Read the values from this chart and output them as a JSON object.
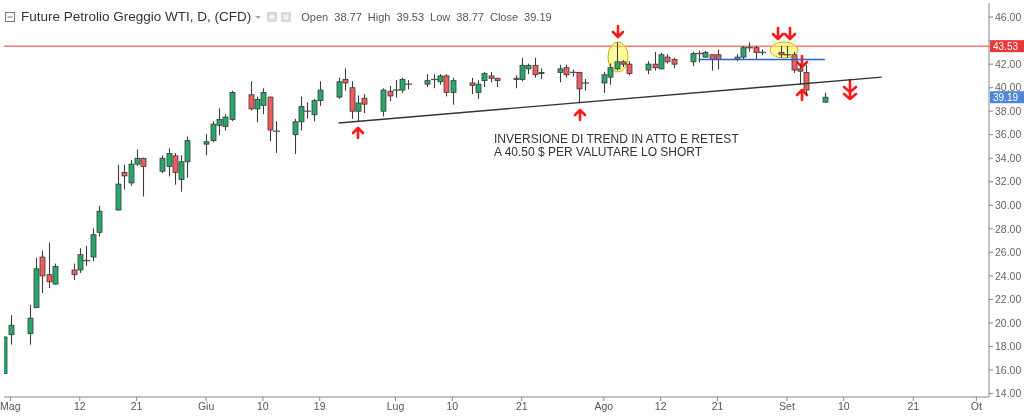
{
  "chart_data": {
    "type": "candlestick",
    "title": "Future Petrolio Greggio WTI, D, (CFD)",
    "subtitle": "Open 38.77 High 39.53 Low 38.77 Close 39.19",
    "x": [
      "--04-30",
      "--05-01",
      "--05-04",
      "--05-05",
      "--05-06",
      "--05-07",
      "--05-08",
      "--05-11",
      "--05-12",
      "--05-13",
      "--05-14",
      "--05-15",
      "--05-18",
      "--05-19",
      "--05-20",
      "--05-21",
      "--05-22",
      "--05-25",
      "--05-26",
      "--05-27",
      "--05-28",
      "--05-29",
      "--06-01",
      "--06-02",
      "--06-03",
      "--06-04",
      "--06-05",
      "--06-08",
      "--06-09",
      "--06-10",
      "--06-11",
      "--06-12",
      "--06-15",
      "--06-16",
      "--06-17",
      "--06-18",
      "--06-19",
      "--06-22",
      "--06-23",
      "--06-24",
      "--06-25",
      "--06-26",
      "--06-29",
      "--06-30",
      "--07-01",
      "--07-02",
      "--07-03",
      "--07-06",
      "--07-07",
      "--07-08",
      "--07-09",
      "--07-10",
      "--07-13",
      "--07-14",
      "--07-15",
      "--07-16",
      "--07-17",
      "--07-20",
      "--07-21",
      "--07-22",
      "--07-23",
      "--07-24",
      "--07-27",
      "--07-28",
      "--07-29",
      "--07-30",
      "--07-31",
      "--08-03",
      "--08-04",
      "--08-05",
      "--08-06",
      "--08-07",
      "--08-10",
      "--08-11",
      "--08-12",
      "--08-13",
      "--08-14",
      "--08-17",
      "--08-18",
      "--08-19",
      "--08-20",
      "--08-21",
      "--08-24",
      "--08-25",
      "--08-26",
      "--08-27",
      "--08-28",
      "--08-31",
      "--09-01",
      "--09-02",
      "--09-03",
      "--09-04",
      "--09-07"
    ],
    "ohlc": [
      [
        15.7,
        18.8,
        15.7,
        18.8
      ],
      [
        19.0,
        20.6,
        18.2,
        19.8
      ],
      [
        19.1,
        21.5,
        18.2,
        20.4
      ],
      [
        21.3,
        25.5,
        21.3,
        24.6
      ],
      [
        25.6,
        26.1,
        22.6,
        24.0
      ],
      [
        24.1,
        26.8,
        23.0,
        23.5
      ],
      [
        23.3,
        25.0,
        23.3,
        24.8
      ],
      [
        24.5,
        25.0,
        23.7,
        24.1
      ],
      [
        24.5,
        26.3,
        24.3,
        25.8
      ],
      [
        25.3,
        26.5,
        24.9,
        25.3
      ],
      [
        25.6,
        28.0,
        25.3,
        27.5
      ],
      [
        27.7,
        29.9,
        27.4,
        29.5
      ],
      [
        29.6,
        33.4,
        29.6,
        31.8
      ],
      [
        32.8,
        33.4,
        31.4,
        32.5
      ],
      [
        31.9,
        33.8,
        31.7,
        33.5
      ],
      [
        33.5,
        34.7,
        33.4,
        34.0
      ],
      [
        34.0,
        34.0,
        30.8,
        33.3
      ],
      [
        32.9,
        34.2,
        32.8,
        34.0
      ],
      [
        33.3,
        34.8,
        32.5,
        34.4
      ],
      [
        34.2,
        34.4,
        31.8,
        32.8
      ],
      [
        32.2,
        34.2,
        31.2,
        33.7
      ],
      [
        33.7,
        35.8,
        32.4,
        35.5
      ],
      [
        35.2,
        36.0,
        34.3,
        35.4
      ],
      [
        35.5,
        37.1,
        35.4,
        36.9
      ],
      [
        36.8,
        38.2,
        36.0,
        37.3
      ],
      [
        36.7,
        37.7,
        36.4,
        37.5
      ],
      [
        37.3,
        39.7,
        37.2,
        39.6
      ],
      [
        39.4,
        40.5,
        38.1,
        38.2
      ],
      [
        38.2,
        39.2,
        37.1,
        39.0
      ],
      [
        38.5,
        39.9,
        37.8,
        39.6
      ],
      [
        39.2,
        39.2,
        35.5,
        36.4
      ],
      [
        36.3,
        37.1,
        34.5,
        36.3
      ],
      [
        36.0,
        37.3,
        34.4,
        37.1
      ],
      [
        37.1,
        39.2,
        36.4,
        38.4
      ],
      [
        38.0,
        38.7,
        37.4,
        38.0
      ],
      [
        37.7,
        39.0,
        37.2,
        38.9
      ],
      [
        38.9,
        40.5,
        38.5,
        39.8
      ],
      [
        39.2,
        40.8,
        39.1,
        40.5
      ],
      [
        40.7,
        41.6,
        39.8,
        40.4
      ],
      [
        40.0,
        40.5,
        37.4,
        38.0
      ],
      [
        38.0,
        39.3,
        37.2,
        38.7
      ],
      [
        39.1,
        39.4,
        37.9,
        38.6
      ],
      [
        38.0,
        39.9,
        37.6,
        39.8
      ],
      [
        39.7,
        40.1,
        38.9,
        39.3
      ],
      [
        39.8,
        40.6,
        39.2,
        39.8
      ],
      [
        39.8,
        40.8,
        39.6,
        40.7
      ],
      [
        40.3,
        40.6,
        39.9,
        40.3
      ],
      [
        40.3,
        41.1,
        40.1,
        40.6
      ],
      [
        40.7,
        41.1,
        40.0,
        40.7
      ],
      [
        40.5,
        41.1,
        40.3,
        41.0
      ],
      [
        41.0,
        41.1,
        39.3,
        39.6
      ],
      [
        39.6,
        40.8,
        38.6,
        40.6
      ],
      [
        40.4,
        40.8,
        39.5,
        40.2
      ],
      [
        39.6,
        40.6,
        39.1,
        40.3
      ],
      [
        40.6,
        41.3,
        40.1,
        41.2
      ],
      [
        41.0,
        41.3,
        40.5,
        40.8
      ],
      [
        40.8,
        40.8,
        40.1,
        40.6
      ],
      [
        40.7,
        41.0,
        40.0,
        40.8
      ],
      [
        40.7,
        42.5,
        40.6,
        41.9
      ],
      [
        41.6,
        42.0,
        41.2,
        41.9
      ],
      [
        41.9,
        42.5,
        40.9,
        41.1
      ],
      [
        41.2,
        41.6,
        40.8,
        41.3
      ],
      [
        41.3,
        41.9,
        40.5,
        41.6
      ],
      [
        41.7,
        41.9,
        40.9,
        41.1
      ],
      [
        41.3,
        41.5,
        41.0,
        41.3
      ],
      [
        41.3,
        41.3,
        38.8,
        39.9
      ],
      [
        40.4,
        40.7,
        39.8,
        40.4
      ],
      [
        40.4,
        41.3,
        39.6,
        41.1
      ],
      [
        40.9,
        42.0,
        40.3,
        41.7
      ],
      [
        41.6,
        43.8,
        41.5,
        42.2
      ],
      [
        42.2,
        42.3,
        41.8,
        42.0
      ],
      [
        42.0,
        42.2,
        41.1,
        41.2
      ],
      [
        41.5,
        42.2,
        41.2,
        42.0
      ],
      [
        42.0,
        43.0,
        41.5,
        41.7
      ],
      [
        41.6,
        42.9,
        41.6,
        42.8
      ],
      [
        42.6,
        42.8,
        42.1,
        42.2
      ],
      [
        42.4,
        42.5,
        41.7,
        42.0
      ],
      [
        42.2,
        43.0,
        41.9,
        42.9
      ],
      [
        42.9,
        43.1,
        42.2,
        42.9
      ],
      [
        42.6,
        43.1,
        42.6,
        43.0
      ],
      [
        42.8,
        42.8,
        41.5,
        42.4
      ],
      [
        42.8,
        43.2,
        41.6,
        42.4
      ],
      [
        42.4,
        42.8,
        42.3,
        42.6
      ],
      [
        42.6,
        43.5,
        42.4,
        43.4
      ],
      [
        43.4,
        43.8,
        43.1,
        43.4
      ],
      [
        43.4,
        43.5,
        42.5,
        43.0
      ],
      [
        43.0,
        43.2,
        42.8,
        43.0
      ],
      [
        43.0,
        43.5,
        42.6,
        42.8
      ],
      [
        42.8,
        43.5,
        42.6,
        42.8
      ],
      [
        42.8,
        43.0,
        41.3,
        41.5
      ],
      [
        41.6,
        41.9,
        40.3,
        41.4
      ],
      [
        41.3,
        41.9,
        39.4,
        39.8
      ],
      [
        38.77,
        39.53,
        38.77,
        39.19
      ]
    ],
    "colors": [
      "#26a86a",
      "#26a86a",
      "#26a86a",
      "#26a86a",
      "#ee5d5a",
      "#ee5d5a",
      "#26a86a",
      "#ee5d5a",
      "#26a86a",
      "#555555",
      "#26a86a",
      "#26a86a",
      "#26a86a",
      "#ee5d5a",
      "#26a86a",
      "#26a86a",
      "#ee5d5a",
      "#26a86a",
      "#26a86a",
      "#ee5d5a",
      "#26a86a",
      "#26a86a",
      "#26a86a",
      "#26a86a",
      "#26a86a",
      "#26a86a",
      "#26a86a",
      "#ee5d5a",
      "#26a86a",
      "#26a86a",
      "#ee5d5a",
      "#555555",
      "#26a86a",
      "#26a86a",
      "#555555",
      "#26a86a",
      "#26a86a",
      "#26a86a",
      "#ee5d5a",
      "#ee5d5a",
      "#26a86a",
      "#ee5d5a",
      "#26a86a",
      "#ee5d5a",
      "#555555",
      "#26a86a",
      "#555555",
      "#26a86a",
      "#555555",
      "#26a86a",
      "#ee5d5a",
      "#26a86a",
      "#ee5d5a",
      "#26a86a",
      "#26a86a",
      "#ee5d5a",
      "#ee5d5a",
      "#26a86a",
      "#26a86a",
      "#26a86a",
      "#ee5d5a",
      "#26a86a",
      "#26a86a",
      "#ee5d5a",
      "#555555",
      "#ee5d5a",
      "#555555",
      "#26a86a",
      "#26a86a",
      "#26a86a",
      "#ee5d5a",
      "#ee5d5a",
      "#26a86a",
      "#ee5d5a",
      "#26a86a",
      "#ee5d5a",
      "#ee5d5a",
      "#26a86a",
      "#555555",
      "#26a86a",
      "#ee5d5a",
      "#ee5d5a",
      "#26a86a",
      "#26a86a",
      "#555555",
      "#ee5d5a",
      "#555555",
      "#ee5d5a",
      "#555555",
      "#ee5d5a",
      "#ee5d5a",
      "#ee5d5a",
      "#26a86a"
    ],
    "series": [
      {
        "type": "line",
        "x": [
          "--06-22",
          "--09-16"
        ],
        "values": [
          37.0,
          40.9
        ],
        "color": "#333333"
      },
      {
        "type": "line",
        "x": [
          "--08-18",
          "--09-07"
        ],
        "values": [
          42.4,
          42.4
        ],
        "color": "#2f5fd0"
      }
    ],
    "ref_lines": [
      {
        "axis": "y",
        "value": 43.53,
        "label": "43.53",
        "color": "#e53935"
      }
    ],
    "annotations": [
      {
        "text": "39.19",
        "y": 39.19
      },
      "INVERSIONE DI TREND IN ATTO E RETEST\nA 40.50 $ PER VALUTARE LO SHORT"
    ],
    "xlim": [
      "--04-30",
      "--10-03"
    ],
    "xticks": [
      {
        "value": "--05-01",
        "label": "Mag"
      },
      {
        "value": "--05-12",
        "label": "12"
      },
      {
        "value": "--05-21",
        "label": "21"
      },
      {
        "value": "--06-01",
        "label": "Giu"
      },
      {
        "value": "--06-10",
        "label": "10"
      },
      {
        "value": "--06-19",
        "label": "19"
      },
      {
        "value": "--07-01",
        "label": "Lug"
      },
      {
        "value": "--07-10",
        "label": "10"
      },
      {
        "value": "--07-21",
        "label": "21"
      },
      {
        "value": "--08-03",
        "label": "Ago"
      },
      {
        "value": "--08-12",
        "label": "12"
      },
      {
        "value": "--08-21",
        "label": "21"
      },
      {
        "value": "--09-01",
        "label": "Set"
      },
      {
        "value": "--09-10",
        "label": "10"
      },
      {
        "value": "--09-21",
        "label": "21"
      },
      {
        "value": "--10-01",
        "label": "Ot"
      }
    ],
    "ylim": [
      13.7,
      47.2
    ],
    "yticks": [
      {
        "value": 14,
        "label": "14.00"
      },
      {
        "value": 16,
        "label": "16.00"
      },
      {
        "value": 18,
        "label": "18.00"
      },
      {
        "value": 20,
        "label": "20.00"
      },
      {
        "value": 22,
        "label": "22.00"
      },
      {
        "value": 24,
        "label": "24.00"
      },
      {
        "value": 26,
        "label": "26.00"
      },
      {
        "value": 28,
        "label": "28.00"
      },
      {
        "value": 30,
        "label": "30.00"
      },
      {
        "value": 32,
        "label": "32.00"
      },
      {
        "value": 34,
        "label": "34.00"
      },
      {
        "value": 36,
        "label": "36.00"
      },
      {
        "value": 38,
        "label": "38.00"
      },
      {
        "value": 40,
        "label": "40.00"
      },
      {
        "value": 42,
        "label": "42.00"
      },
      {
        "value": 44,
        "label": null
      },
      {
        "value": 46,
        "label": "46.00"
      }
    ]
  }
}
